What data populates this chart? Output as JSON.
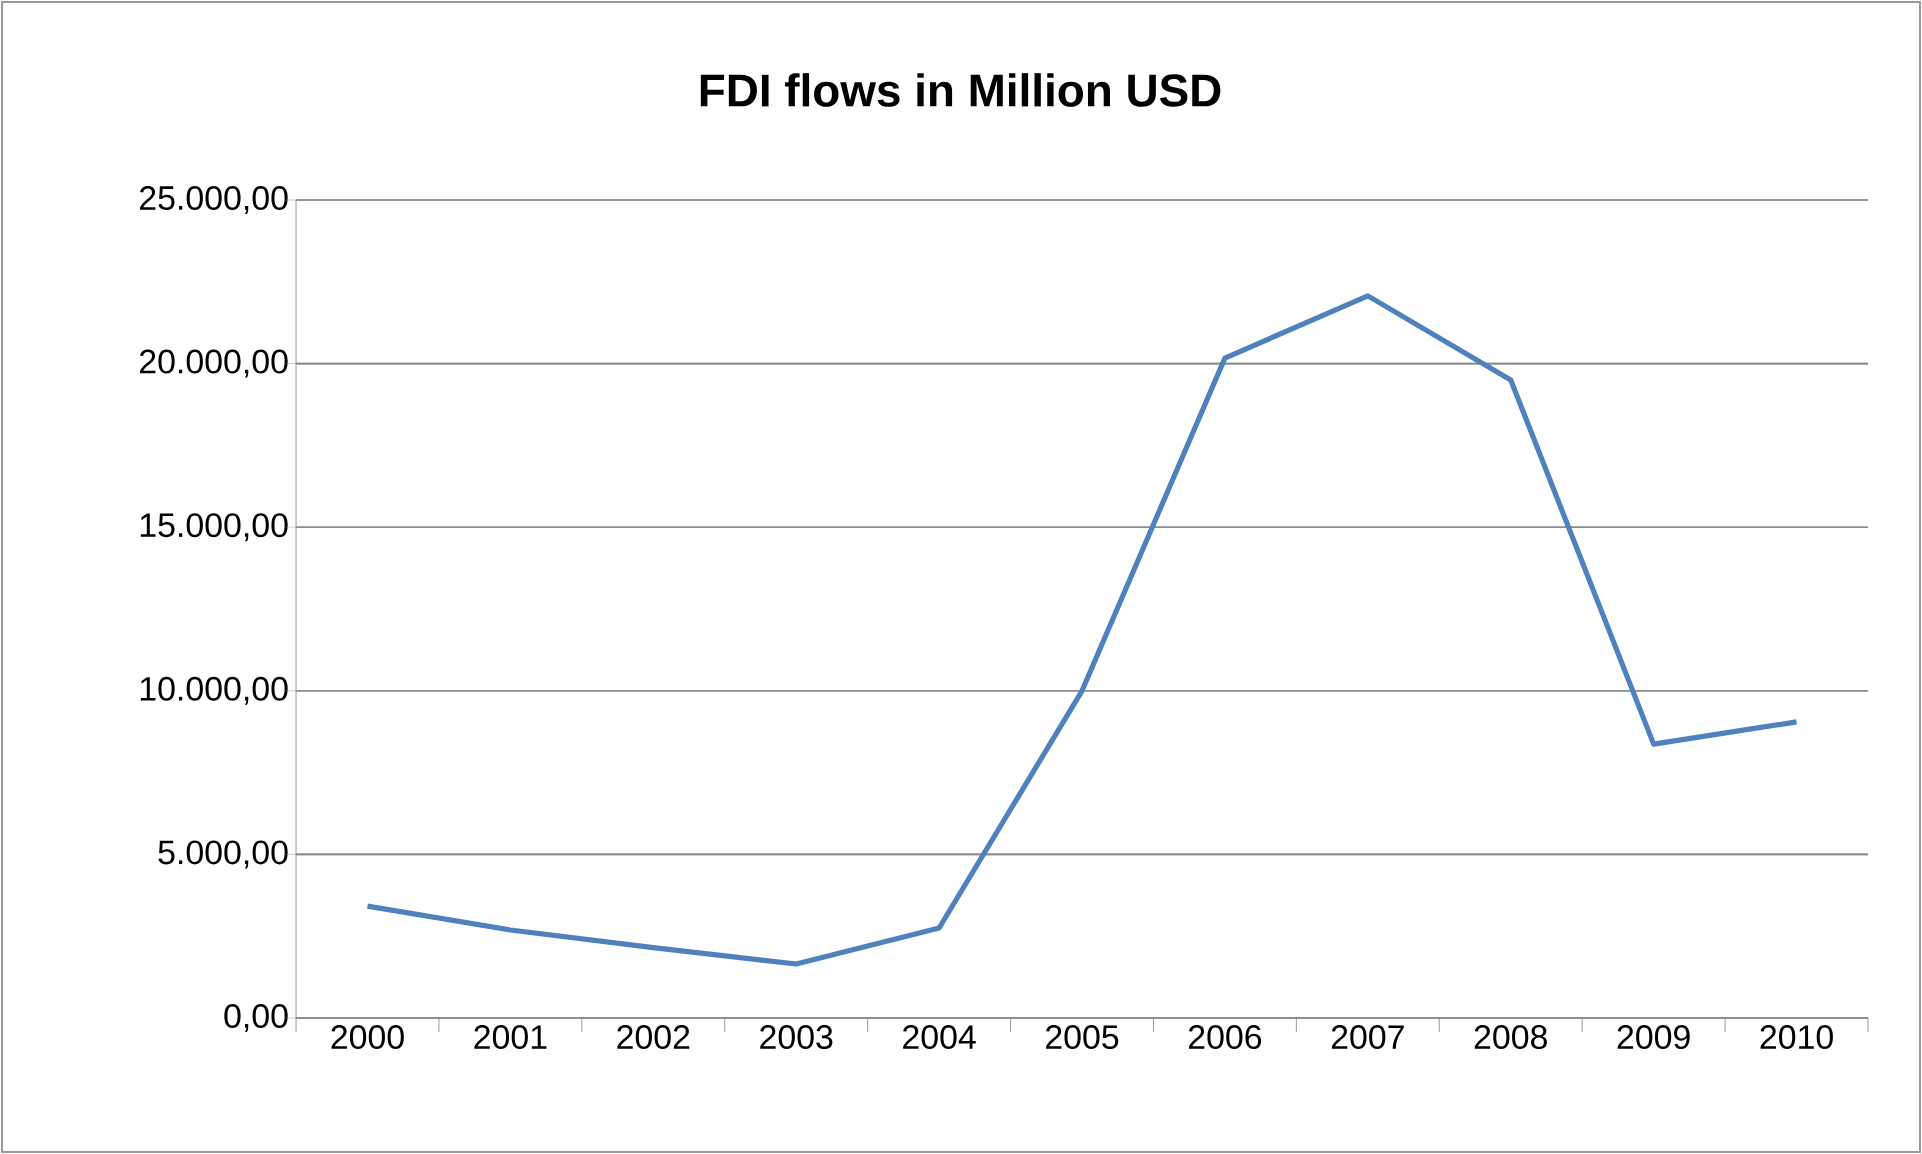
{
  "chart_data": {
    "type": "line",
    "title": "FDI flows in Million USD",
    "categories": [
      "2000",
      "2001",
      "2002",
      "2003",
      "2004",
      "2005",
      "2006",
      "2007",
      "2008",
      "2009",
      "2010"
    ],
    "series": [
      {
        "color": "#4f81bd",
        "values": [
          3420,
          2690,
          2150,
          1650,
          2750,
          10000,
          20170,
          22070,
          19500,
          8370,
          9050
        ]
      }
    ],
    "ylim": [
      0,
      25000
    ],
    "yticks": [
      {
        "value": 0,
        "label": "0,00"
      },
      {
        "value": 5000,
        "label": "5.000,00"
      },
      {
        "value": 10000,
        "label": "10.000,00"
      },
      {
        "value": 15000,
        "label": "15.000,00"
      },
      {
        "value": 20000,
        "label": "20.000,00"
      },
      {
        "value": 25000,
        "label": "25.000,00"
      }
    ],
    "grid": "y",
    "marker": "none",
    "line_style": "solid"
  }
}
